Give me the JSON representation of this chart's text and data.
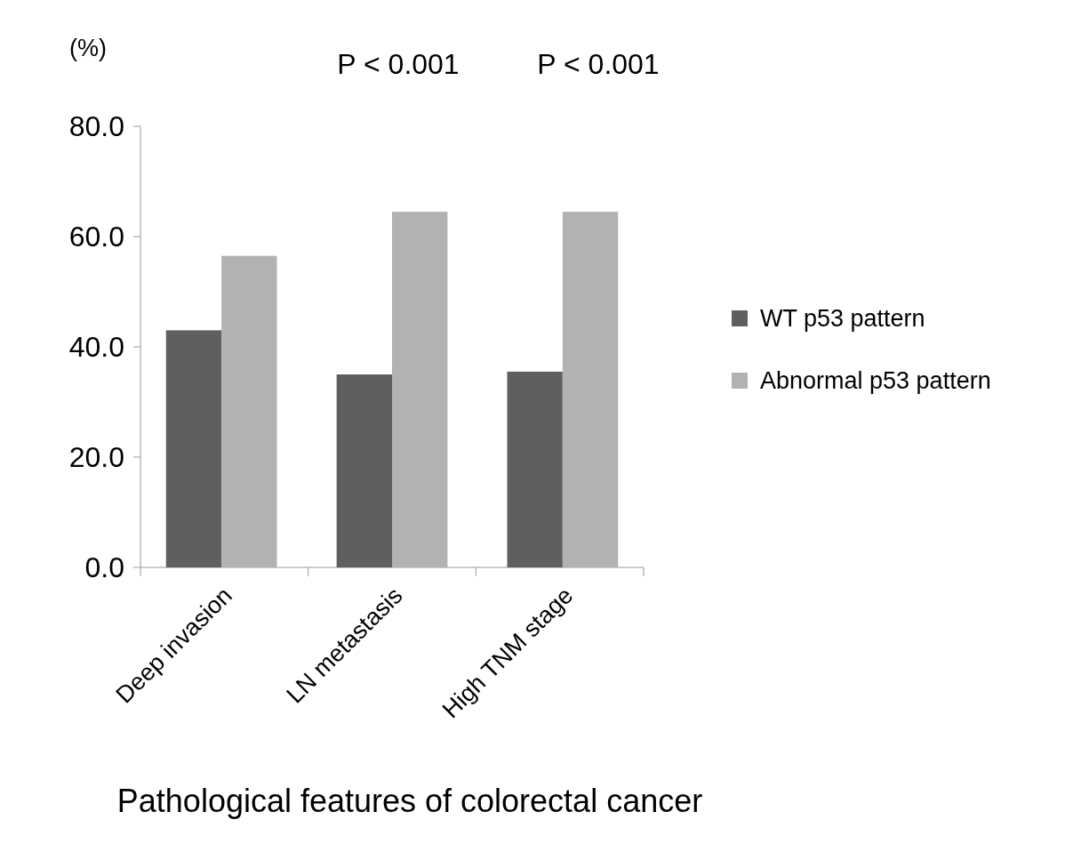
{
  "chart_data": {
    "type": "bar",
    "xlabel": "Pathological features of colorectal cancer",
    "ylabel": "(%)",
    "categories": [
      "Deep invasion",
      "LN metastasis",
      "High TNM stage"
    ],
    "series": [
      {
        "name": "WT p53 pattern",
        "color": "#5f5f5f",
        "values": [
          43.0,
          35.0,
          35.5
        ]
      },
      {
        "name": "Abnormal p53 pattern",
        "color": "#b2b2b2",
        "values": [
          56.5,
          64.5,
          64.5
        ]
      }
    ],
    "ylim": [
      0,
      80
    ],
    "yticks": [
      {
        "value": 0,
        "label": "0.0"
      },
      {
        "value": 20,
        "label": "20.0"
      },
      {
        "value": 40,
        "label": "40.0"
      },
      {
        "value": 60,
        "label": "60.0"
      },
      {
        "value": 80,
        "label": "80.0"
      }
    ],
    "annotations": [
      "P < 0.001",
      "P < 0.001"
    ],
    "grid": false,
    "legend": "right"
  }
}
